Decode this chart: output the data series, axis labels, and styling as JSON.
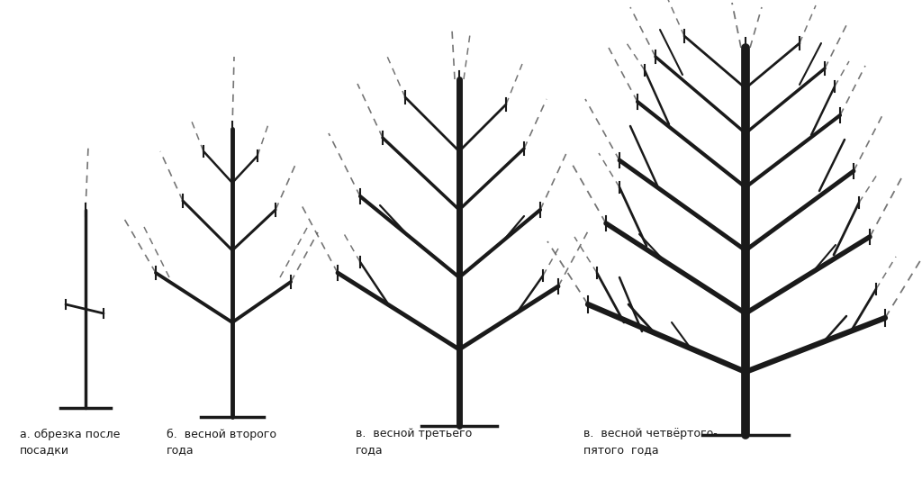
{
  "background_color": "#ffffff",
  "line_color": "#1a1a1a",
  "dashed_color": "#666666",
  "figsize": [
    10.24,
    5.43
  ],
  "dpi": 100,
  "labels": [
    "а. обрезка после\nпосадки",
    "б.  весной второго\nгода",
    "в.  весной третьего\nгода",
    "в.  весной четвёртого-\nпятого  года"
  ],
  "label_fontsize": 9
}
